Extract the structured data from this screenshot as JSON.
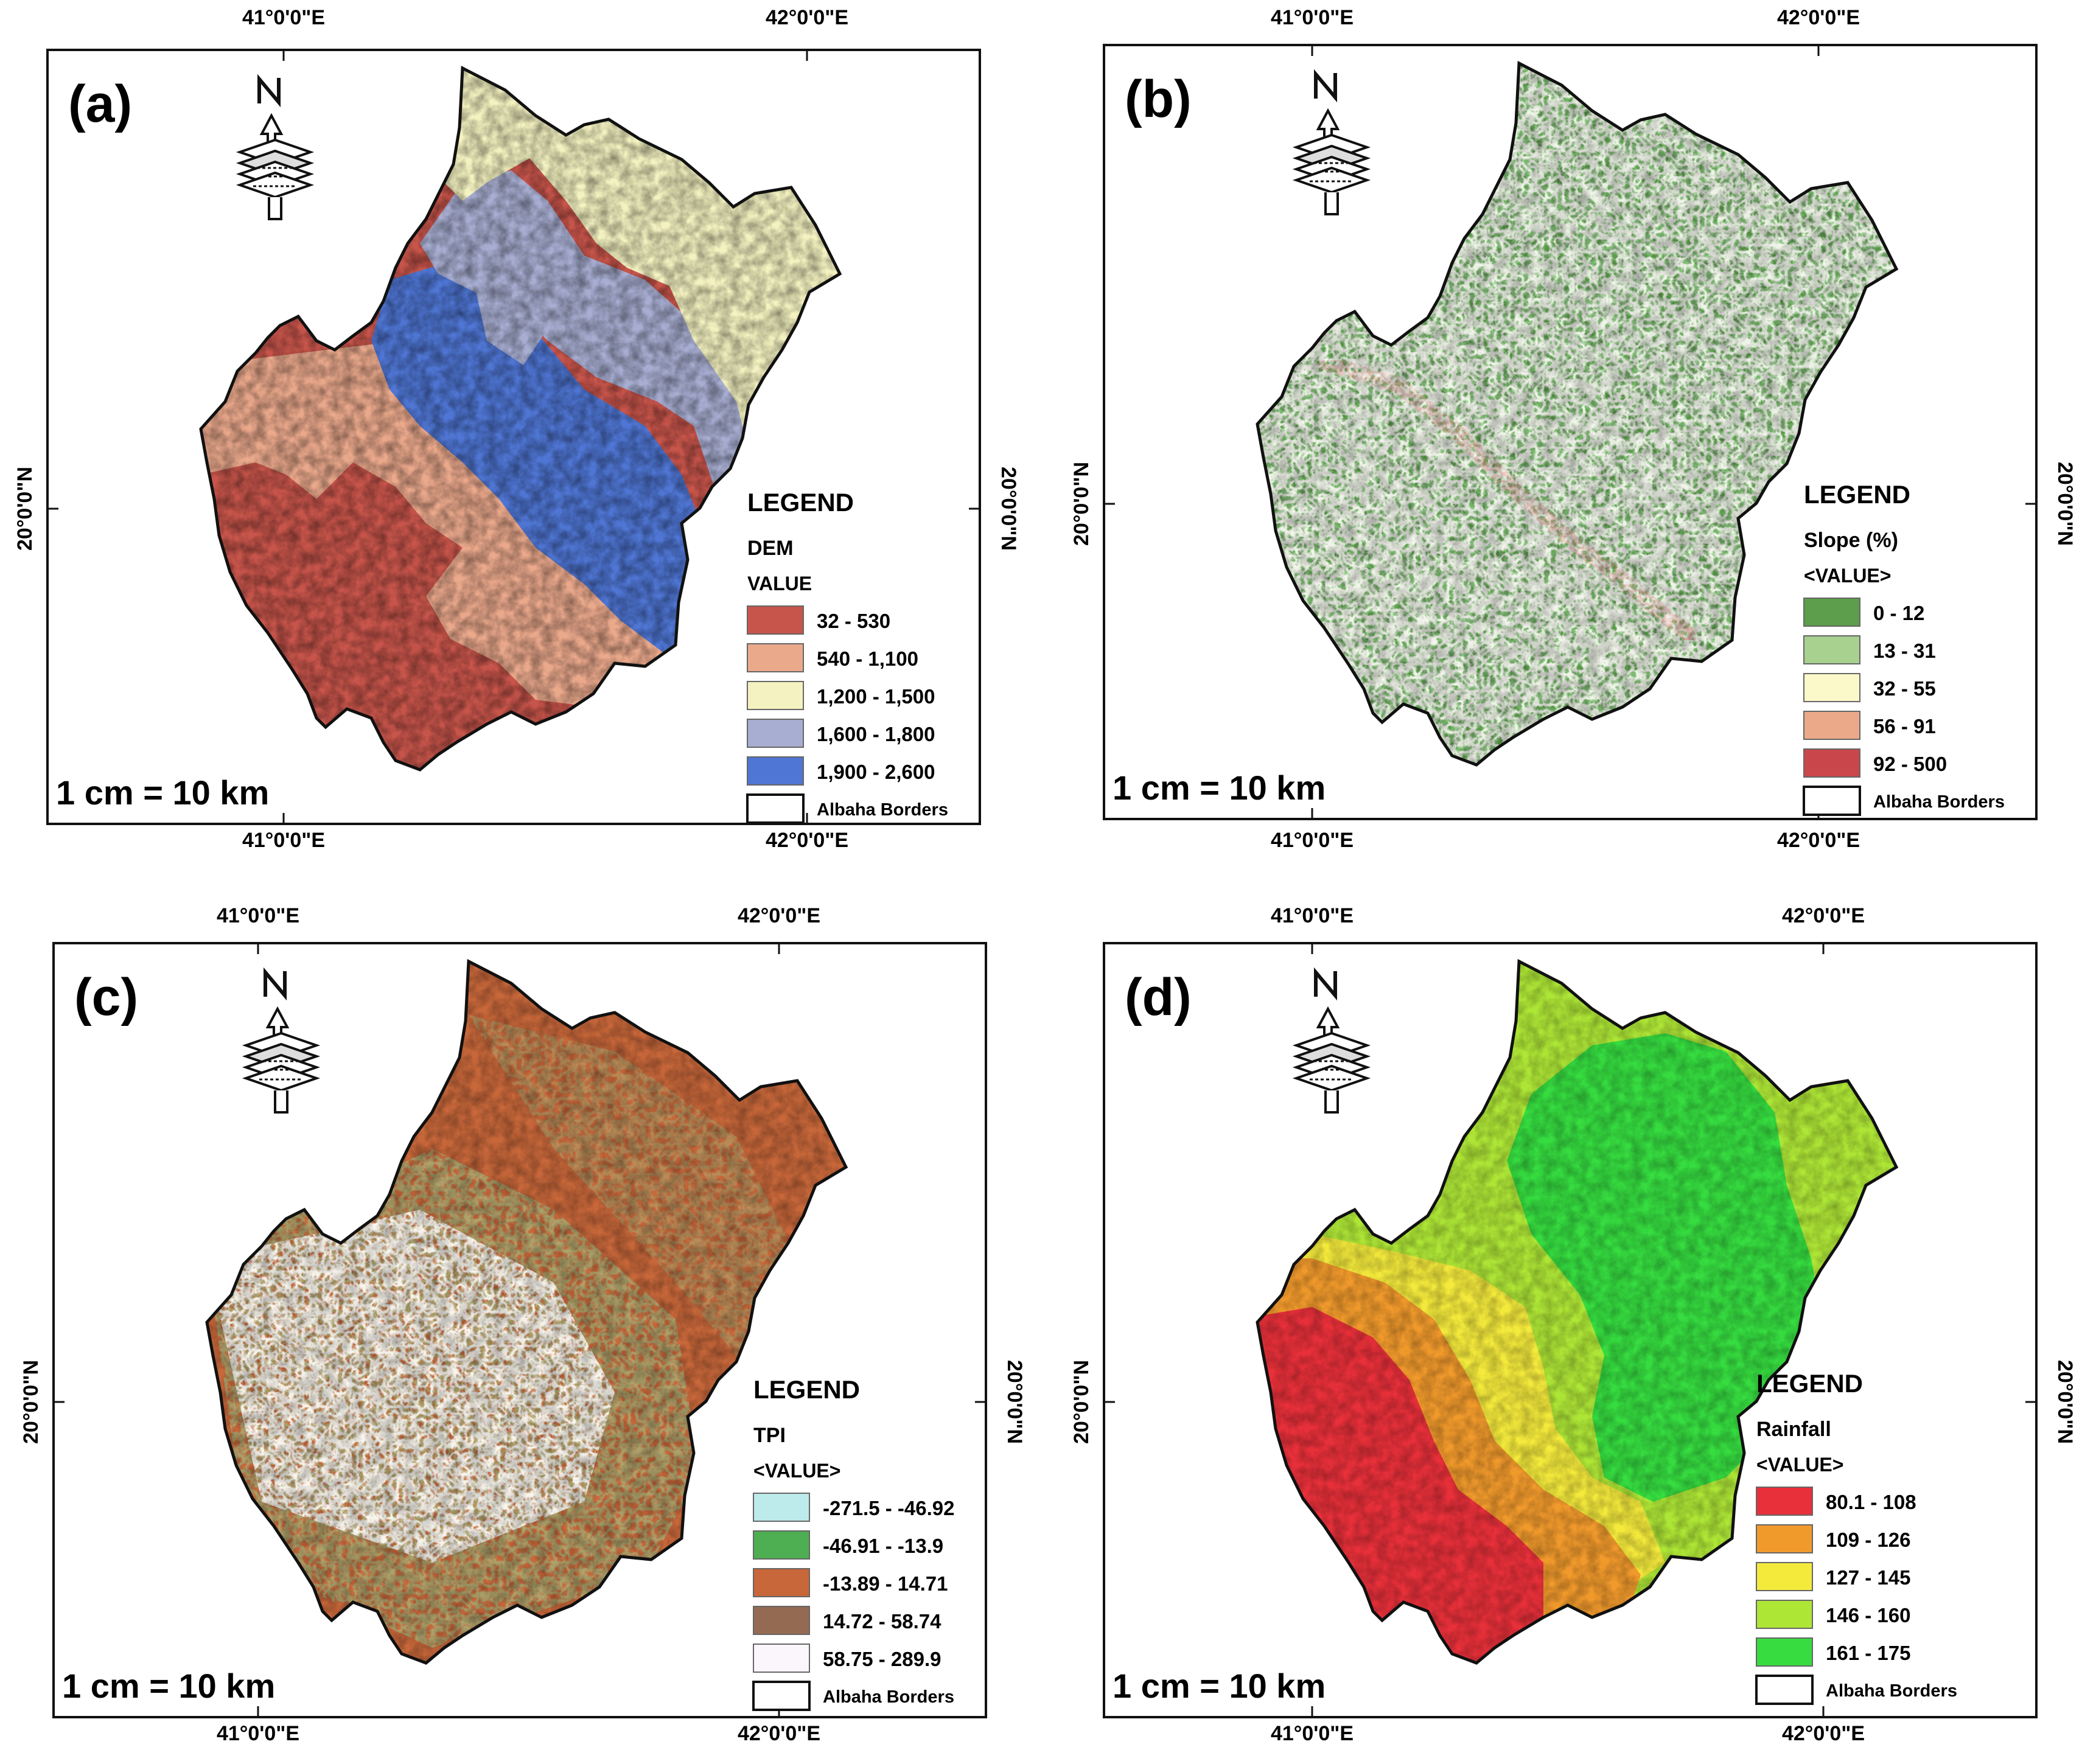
{
  "axis_labels": {
    "lon_41": "41°0'0\"E",
    "lon_42": "42°0'0\"E",
    "lat_20": "20°0'0\"N"
  },
  "north_label": "N",
  "scale_label": "1 cm = 10 km",
  "legend_title": "LEGEND",
  "border_label": "Albaha Borders",
  "panels": [
    {
      "id": "a",
      "tag": "(a)",
      "layer_title": "DEM",
      "value_label": "VALUE",
      "classes": [
        {
          "label": "32 - 530",
          "color": "#c8554b"
        },
        {
          "label": "540 - 1,100",
          "color": "#eba98c"
        },
        {
          "label": "1,200 - 1,500",
          "color": "#f4f2c0"
        },
        {
          "label": "1,600 - 1,800",
          "color": "#a8aed2"
        },
        {
          "label": "1,900 - 2,600",
          "color": "#4f76d4"
        }
      ]
    },
    {
      "id": "b",
      "tag": "(b)",
      "layer_title": "Slope (%)",
      "value_label": "<VALUE>",
      "classes": [
        {
          "label": "0 - 12",
          "color": "#5c9e4b"
        },
        {
          "label": "13 - 31",
          "color": "#a8d08f"
        },
        {
          "label": "32 - 55",
          "color": "#fbf9c9"
        },
        {
          "label": "56 - 91",
          "color": "#eba98a"
        },
        {
          "label": "92 - 500",
          "color": "#c9474a"
        }
      ]
    },
    {
      "id": "c",
      "tag": "(c)",
      "layer_title": "TPI",
      "value_label": "<VALUE>",
      "classes": [
        {
          "label": "-271.5 - -46.92",
          "color": "#bdeaea"
        },
        {
          "label": "-46.91 - -13.9",
          "color": "#4dae52"
        },
        {
          "label": "-13.89 - 14.71",
          "color": "#c7673a"
        },
        {
          "label": "14.72 - 58.74",
          "color": "#946a52"
        },
        {
          "label": "58.75 - 289.9",
          "color": "#fbf6fb"
        }
      ]
    },
    {
      "id": "d",
      "tag": "(d)",
      "layer_title": "Rainfall",
      "value_label": "<VALUE>",
      "classes": [
        {
          "label": "80.1 - 108",
          "color": "#e8303a"
        },
        {
          "label": "109 - 126",
          "color": "#f19a2c"
        },
        {
          "label": "127 - 145",
          "color": "#f4ea3c"
        },
        {
          "label": "146 - 160",
          "color": "#aee636"
        },
        {
          "label": "161 - 175",
          "color": "#36dc40"
        }
      ]
    }
  ]
}
